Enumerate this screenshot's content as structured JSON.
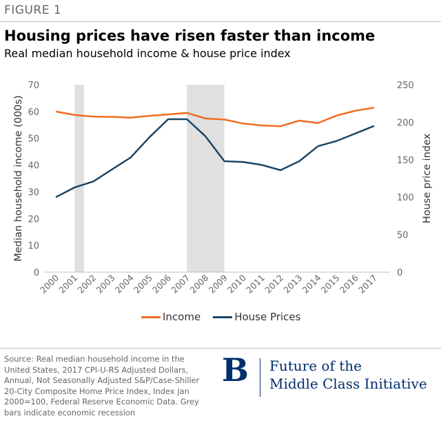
{
  "figure_label": "FIGURE 1",
  "title": "Housing prices have risen faster than income",
  "subtitle": "Real median household income & house price index",
  "source": "Source: Real median household income in the United States, 2017 CPI-U-RS Adjusted Dollars, Annual, Not Seasonally Adjusted S&P/Case-Shiller 20-City Composite Home Price Index, Index Jan 2000=100,  Federal Reserve Economic Data. Grey bars indicate economic recession",
  "logo": {
    "letter": "B",
    "line1": "Future of the",
    "line2": "Middle Class Initiative"
  },
  "colors": {
    "income": "#f26b1d",
    "house": "#1b4565",
    "recession": "#e0e0e0",
    "axis_text": "#666666",
    "brand": "#002f6c"
  },
  "chart_data": {
    "type": "line",
    "x": [
      "2000",
      "2001",
      "2002",
      "2003",
      "2004",
      "2005",
      "2006",
      "2007",
      "2008",
      "2009",
      "2010",
      "2011",
      "2012",
      "2013",
      "2014",
      "2015",
      "2016",
      "2017"
    ],
    "series": [
      {
        "name": "Income",
        "axis": "left",
        "values": [
          60.0,
          58.7,
          58.1,
          58.0,
          57.7,
          58.4,
          58.9,
          59.5,
          57.4,
          57.0,
          55.5,
          54.8,
          54.5,
          56.6,
          55.7,
          58.5,
          60.3,
          61.4
        ]
      },
      {
        "name": "House Prices",
        "axis": "right",
        "values": [
          100,
          113,
          121,
          137,
          153,
          180,
          204,
          204,
          181,
          148,
          147,
          143,
          136,
          148,
          168,
          175,
          185,
          195
        ]
      }
    ],
    "ylabel": "Median household income (000s)",
    "ylim": [
      0,
      70
    ],
    "yticks": [
      "0",
      "10",
      "20",
      "30",
      "40",
      "50",
      "60",
      "70"
    ],
    "y2label": "House price index",
    "y2lim": [
      0,
      250
    ],
    "y2ticks": [
      "0",
      "50",
      "100",
      "150",
      "200",
      "250"
    ],
    "recessions": [
      [
        2001,
        2001.5
      ],
      [
        2007,
        2009
      ]
    ],
    "grid": false,
    "legend_position": "bottom"
  }
}
